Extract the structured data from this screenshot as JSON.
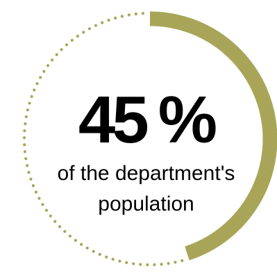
{
  "stat": {
    "percent_value": 45,
    "number": "45",
    "unit": "%",
    "caption_line1": "of the department's",
    "caption_line2": "population"
  },
  "colors": {
    "accent": "#a8a558",
    "text": "#000000",
    "background": "#ffffff"
  }
}
